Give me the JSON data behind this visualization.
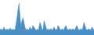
{
  "values": [
    1.5,
    2,
    1.5,
    1.8,
    2.5,
    1.8,
    1.5,
    2,
    1.5,
    1.8,
    2.2,
    1.8,
    1.5,
    2,
    1.5,
    1.8,
    3.5,
    5.5,
    8,
    10,
    6,
    3,
    4.5,
    5.5,
    4,
    2.5,
    1.5,
    2,
    1.5,
    1.8,
    2.5,
    1.8,
    2,
    3,
    2.5,
    2,
    1.5,
    1.8,
    1.5,
    2.5,
    4,
    3,
    2,
    1.5,
    4.5,
    3.5,
    2.5,
    1.5,
    2,
    1.5,
    1.8,
    2,
    1.5,
    1.8,
    2.5,
    2,
    1.5,
    1.8,
    3,
    2.5,
    1.8,
    1.5,
    2,
    1.5,
    1.8,
    2.5,
    3,
    2,
    1.5,
    1.8,
    2,
    1.5,
    1.8,
    2,
    1.5,
    1.8,
    2.5,
    3,
    2,
    1.5,
    1.8,
    2,
    1.5,
    2.5,
    4,
    3,
    2,
    1.5,
    1.8,
    2,
    1.5,
    1.8,
    2.5,
    2,
    1.5
  ],
  "fill_color": "#4A90C4",
  "line_color": "#3A7FB5",
  "background_color": "#ffffff",
  "ylim_min": 0,
  "ylim_max": 11
}
